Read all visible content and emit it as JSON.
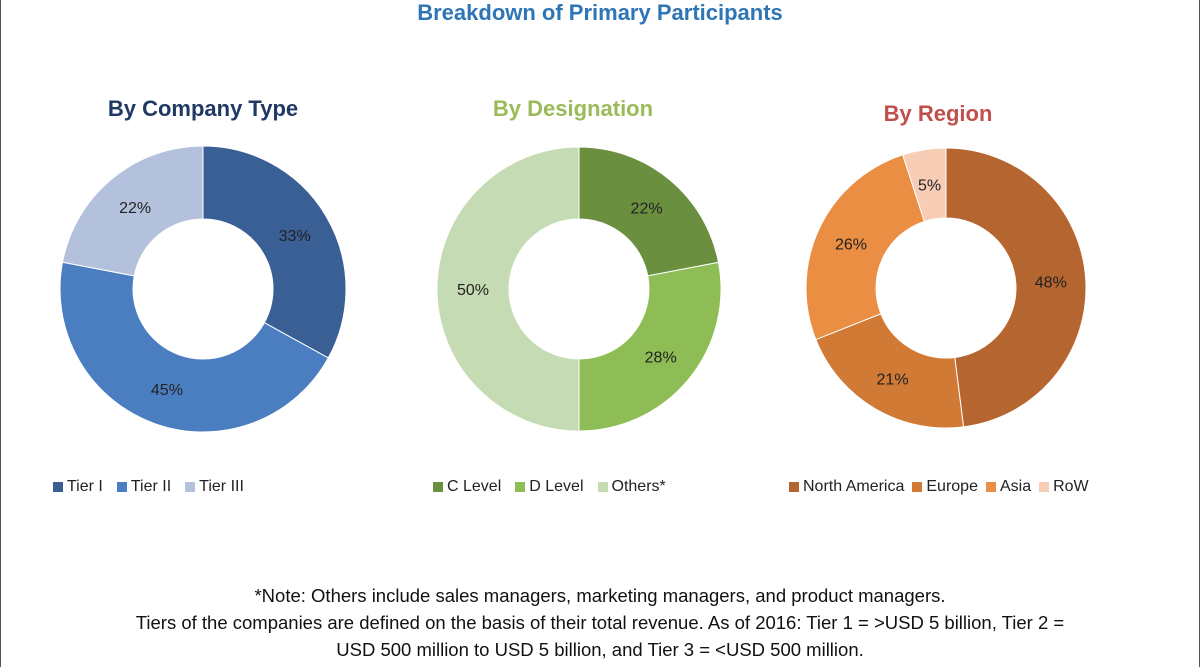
{
  "title": "Breakdown of Primary Participants",
  "chart_data": [
    {
      "type": "pie",
      "donut": true,
      "title": "By Company Type",
      "title_color": "#1f3864",
      "categories": [
        "Tier I",
        "Tier II",
        "Tier III"
      ],
      "values": [
        33,
        45,
        22
      ],
      "colors": [
        "#3a5f94",
        "#4a7ec0",
        "#b4c1dc"
      ],
      "unit": "%"
    },
    {
      "type": "pie",
      "donut": true,
      "title": "By Designation",
      "title_color": "#9bbb59",
      "categories": [
        "C Level",
        "D Level",
        "Others*"
      ],
      "values": [
        22,
        28,
        50
      ],
      "colors": [
        "#6a8f3e",
        "#8fbd55",
        "#c5dbb3"
      ],
      "unit": "%"
    },
    {
      "type": "pie",
      "donut": true,
      "title": "By Region",
      "title_color": "#c0504d",
      "categories": [
        "North America",
        "Europe",
        "Asia",
        "RoW"
      ],
      "values": [
        48,
        21,
        26,
        5
      ],
      "colors": [
        "#b5652f",
        "#d07a35",
        "#ea8e43",
        "#f8cdb6"
      ],
      "unit": "%"
    }
  ],
  "notes": {
    "line1": "*Note: Others include sales managers, marketing managers, and product managers.",
    "line2": "Tiers of the companies are defined on the basis of their total revenue. As of 2016: Tier 1 = >USD 5 billion, Tier 2 =",
    "line3": "USD 500 million to USD 5 billion, and Tier 3 = <USD 500 million."
  }
}
